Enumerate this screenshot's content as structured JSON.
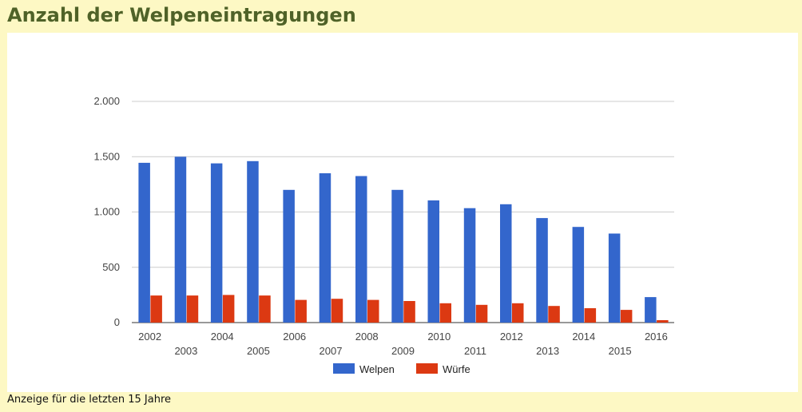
{
  "page": {
    "title": "Anzahl der Welpeneintragungen",
    "footer": "Anzeige für die letzten 15 Jahre"
  },
  "colors": {
    "welpen": "#3366cc",
    "wuerfe": "#dc3912",
    "grid": "#cccccc",
    "axis": "#333333"
  },
  "chart_data": {
    "type": "bar",
    "title": "",
    "xlabel": "",
    "ylabel": "",
    "categories": [
      "2002",
      "2003",
      "2004",
      "2005",
      "2006",
      "2007",
      "2008",
      "2009",
      "2010",
      "2011",
      "2012",
      "2013",
      "2014",
      "2015",
      "2016"
    ],
    "series": [
      {
        "name": "Welpen",
        "values": [
          1445,
          1500,
          1440,
          1460,
          1200,
          1350,
          1325,
          1200,
          1105,
          1035,
          1070,
          945,
          865,
          805,
          230
        ]
      },
      {
        "name": "Würfe",
        "values": [
          245,
          245,
          250,
          245,
          205,
          215,
          205,
          195,
          175,
          160,
          175,
          150,
          130,
          115,
          22
        ]
      }
    ],
    "ylim": [
      0,
      2000
    ],
    "yticks": [
      0,
      500,
      1000,
      1500,
      2000
    ],
    "ytick_labels": [
      "0",
      "500",
      "1.000",
      "1.500",
      "2.000"
    ],
    "grid": true,
    "legend_position": "bottom"
  }
}
